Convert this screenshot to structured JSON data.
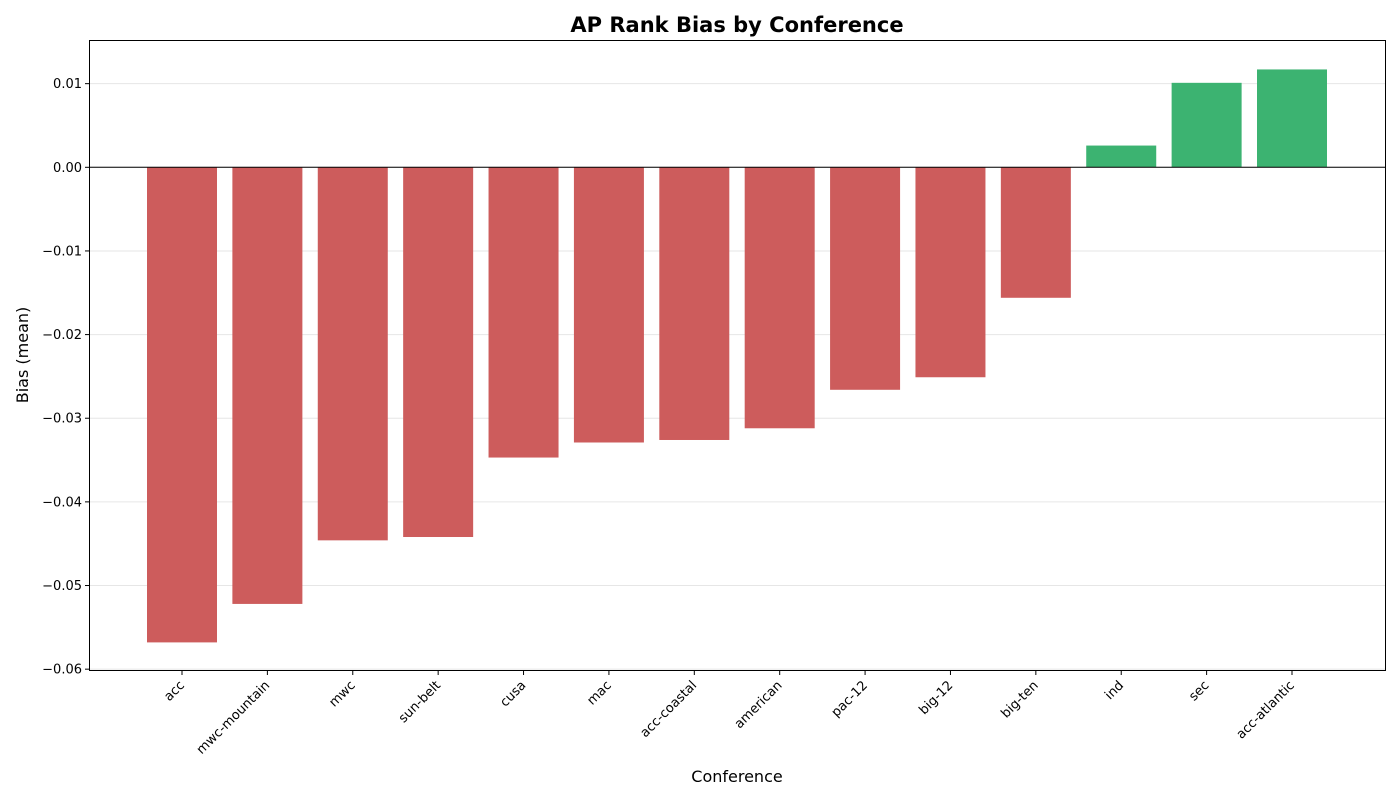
{
  "chart_data": {
    "type": "bar",
    "title": "AP Rank Bias by Conference",
    "xlabel": "Conference",
    "ylabel": "Bias (mean)",
    "categories": [
      "acc",
      "mwc-mountain",
      "mwc",
      "sun-belt",
      "cusa",
      "mac",
      "acc-coastal",
      "american",
      "pac-12",
      "big-12",
      "big-ten",
      "ind",
      "sec",
      "acc-atlantic"
    ],
    "values": [
      -0.0568,
      -0.0522,
      -0.0446,
      -0.0442,
      -0.0347,
      -0.0329,
      -0.0326,
      -0.0312,
      -0.0266,
      -0.0251,
      -0.0156,
      0.0026,
      0.0101,
      0.0117
    ],
    "ylim": [
      -0.0601,
      0.0151
    ],
    "yticks": [
      0.01,
      0.0,
      -0.01,
      -0.02,
      -0.03,
      -0.04,
      -0.05,
      -0.06
    ],
    "ytick_labels": [
      "0.01",
      "0.00",
      "−0.01",
      "−0.02",
      "−0.03",
      "−0.04",
      "−0.05",
      "−0.06"
    ],
    "grid": "horizontal",
    "colors": {
      "negative": "#cd5c5c",
      "positive": "#3cb371",
      "zero_line": "#000000",
      "grid": "#e6e6e6"
    }
  }
}
